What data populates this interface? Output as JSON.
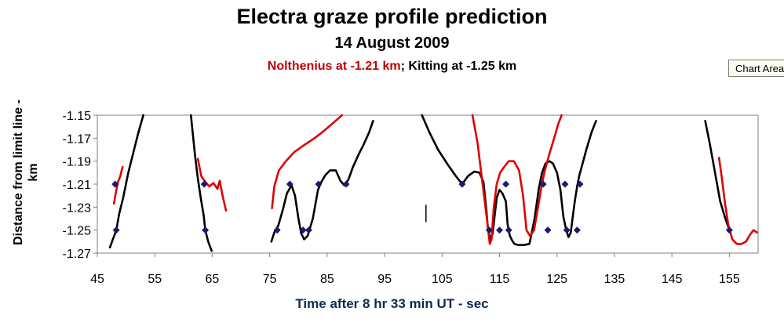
{
  "chart_data": {
    "type": "line",
    "title": "Electra graze profile prediction",
    "subtitle": "14 August 2009",
    "observers_prefix": "Nolthenius at -1.21 km",
    "observers_separator": "; ",
    "observers_suffix": "Kitting at -1.25 km",
    "xlabel": "Time after 8 hr 33 min UT - sec",
    "ylabel": "Distance from limit line - km",
    "xlim": [
      45,
      160
    ],
    "ylim": [
      -1.27,
      -1.15
    ],
    "xticks": [
      45,
      55,
      65,
      75,
      85,
      95,
      105,
      115,
      125,
      135,
      145,
      155
    ],
    "yticks": [
      -1.15,
      -1.17,
      -1.19,
      -1.21,
      -1.23,
      -1.25,
      -1.27
    ],
    "grid": false,
    "colors": {
      "profile": "#000000",
      "alt_profile": "#e00000",
      "marker": "#1a1a6e",
      "title_red": "#c00000"
    },
    "series": [
      {
        "color": "#000000",
        "x": [
          47.2,
          47.7,
          48.3,
          48.8,
          49.5,
          50.4,
          51.3,
          52.1,
          53.0
        ],
        "y": [
          -1.265,
          -1.258,
          -1.25,
          -1.236,
          -1.222,
          -1.2,
          -1.182,
          -1.166,
          -1.15
        ]
      },
      {
        "color": "#000000",
        "x": [
          61.3,
          61.6,
          62.0,
          62.5,
          63.0,
          63.5,
          63.8,
          64.3,
          64.9
        ],
        "y": [
          -1.15,
          -1.165,
          -1.185,
          -1.205,
          -1.222,
          -1.237,
          -1.25,
          -1.26,
          -1.268
        ]
      },
      {
        "color": "#000000",
        "x": [
          75.3,
          75.8,
          76.5,
          77.3,
          78.0,
          78.8,
          79.4,
          80.0,
          80.5,
          81.0,
          81.6,
          82.5,
          83.4,
          84.0,
          84.7,
          85.5,
          86.5,
          87.3,
          88.0,
          88.7,
          89.5,
          90.4,
          91.4,
          92.3,
          93.0
        ],
        "y": [
          -1.26,
          -1.252,
          -1.246,
          -1.232,
          -1.218,
          -1.211,
          -1.22,
          -1.24,
          -1.253,
          -1.258,
          -1.255,
          -1.24,
          -1.215,
          -1.208,
          -1.202,
          -1.198,
          -1.198,
          -1.207,
          -1.211,
          -1.206,
          -1.195,
          -1.185,
          -1.175,
          -1.165,
          -1.155
        ]
      },
      {
        "color": "#000000",
        "x": [
          101.5,
          102.8,
          104.3,
          106.0,
          107.4,
          108.5,
          109.5,
          110.6,
          111.5,
          112.2,
          112.7,
          113.0,
          113.4,
          113.8,
          114.1,
          114.5,
          115.0,
          115.5,
          116.1,
          116.4,
          116.8,
          117.2,
          117.6,
          118.3,
          119.2,
          120.2,
          121.1,
          121.8,
          122.4,
          123.0,
          123.7,
          124.3,
          125.0,
          125.6,
          126.1,
          126.6,
          127.0,
          127.4,
          127.7,
          128.1,
          128.5,
          128.9,
          129.3,
          130.1,
          131.0,
          131.8
        ],
        "y": [
          -1.15,
          -1.165,
          -1.18,
          -1.193,
          -1.203,
          -1.21,
          -1.203,
          -1.199,
          -1.2,
          -1.208,
          -1.232,
          -1.25,
          -1.258,
          -1.253,
          -1.24,
          -1.222,
          -1.215,
          -1.218,
          -1.225,
          -1.245,
          -1.255,
          -1.259,
          -1.262,
          -1.263,
          -1.263,
          -1.262,
          -1.24,
          -1.215,
          -1.2,
          -1.192,
          -1.19,
          -1.192,
          -1.2,
          -1.215,
          -1.238,
          -1.25,
          -1.256,
          -1.252,
          -1.24,
          -1.225,
          -1.212,
          -1.202,
          -1.195,
          -1.18,
          -1.165,
          -1.155
        ]
      },
      {
        "color": "#000000",
        "x": [
          150.8,
          151.6,
          152.5,
          153.4,
          154.3,
          155.0
        ],
        "y": [
          -1.155,
          -1.175,
          -1.2,
          -1.225,
          -1.24,
          -1.25
        ]
      },
      {
        "color": "#e00000",
        "x": [
          47.9,
          48.2,
          48.6,
          49.0,
          49.4
        ],
        "y": [
          -1.227,
          -1.218,
          -1.208,
          -1.203,
          -1.195
        ]
      },
      {
        "color": "#e00000",
        "x": [
          62.5,
          63.1,
          63.8,
          64.5,
          65.2,
          65.9,
          66.3,
          66.8,
          67.4
        ],
        "y": [
          -1.188,
          -1.203,
          -1.208,
          -1.212,
          -1.209,
          -1.214,
          -1.207,
          -1.22,
          -1.233
        ]
      },
      {
        "color": "#e00000",
        "x": [
          75.4,
          75.8,
          76.6,
          77.8,
          79.3,
          81.0,
          82.8,
          84.6,
          86.2,
          87.6
        ],
        "y": [
          -1.231,
          -1.212,
          -1.198,
          -1.19,
          -1.182,
          -1.176,
          -1.17,
          -1.163,
          -1.156,
          -1.15
        ]
      },
      {
        "color": "#e00000",
        "x": [
          110.3,
          111.2,
          112.0,
          112.8,
          113.3,
          113.6,
          114.0,
          114.5,
          115.1,
          115.8,
          116.6,
          117.5,
          118.4,
          119.1,
          119.7,
          120.3,
          121.0,
          121.7,
          122.2,
          122.8,
          123.6,
          124.5,
          125.2,
          125.8
        ],
        "y": [
          -1.15,
          -1.175,
          -1.208,
          -1.24,
          -1.262,
          -1.258,
          -1.23,
          -1.21,
          -1.2,
          -1.195,
          -1.19,
          -1.19,
          -1.198,
          -1.22,
          -1.25,
          -1.255,
          -1.25,
          -1.23,
          -1.215,
          -1.2,
          -1.185,
          -1.17,
          -1.158,
          -1.15
        ]
      },
      {
        "color": "#e00000",
        "x": [
          153.2,
          153.7,
          154.2,
          154.8,
          155.5,
          156.3,
          157.1,
          157.9,
          158.6,
          159.2,
          159.8
        ],
        "y": [
          -1.187,
          -1.205,
          -1.225,
          -1.245,
          -1.258,
          -1.262,
          -1.262,
          -1.26,
          -1.254,
          -1.25,
          -1.252
        ]
      }
    ],
    "markers": [
      {
        "x": 48.1,
        "y": -1.21
      },
      {
        "x": 48.3,
        "y": -1.25
      },
      {
        "x": 63.6,
        "y": -1.21
      },
      {
        "x": 63.8,
        "y": -1.25
      },
      {
        "x": 76.3,
        "y": -1.25
      },
      {
        "x": 78.5,
        "y": -1.21
      },
      {
        "x": 80.8,
        "y": -1.25
      },
      {
        "x": 81.8,
        "y": -1.25
      },
      {
        "x": 83.5,
        "y": -1.21
      },
      {
        "x": 88.3,
        "y": -1.21
      },
      {
        "x": 108.5,
        "y": -1.21
      },
      {
        "x": 113.2,
        "y": -1.25
      },
      {
        "x": 115.0,
        "y": -1.25
      },
      {
        "x": 116.1,
        "y": -1.21
      },
      {
        "x": 116.6,
        "y": -1.25
      },
      {
        "x": 122.6,
        "y": -1.21
      },
      {
        "x": 123.4,
        "y": -1.25
      },
      {
        "x": 126.4,
        "y": -1.21
      },
      {
        "x": 126.7,
        "y": -1.25
      },
      {
        "x": 128.5,
        "y": -1.25
      },
      {
        "x": 129.0,
        "y": -1.21
      },
      {
        "x": 155.0,
        "y": -1.25
      }
    ],
    "tick_mark": {
      "x": 102.2,
      "y1": -1.228,
      "y2": -1.243
    }
  },
  "ui": {
    "chart_area_button": "Chart Area"
  }
}
